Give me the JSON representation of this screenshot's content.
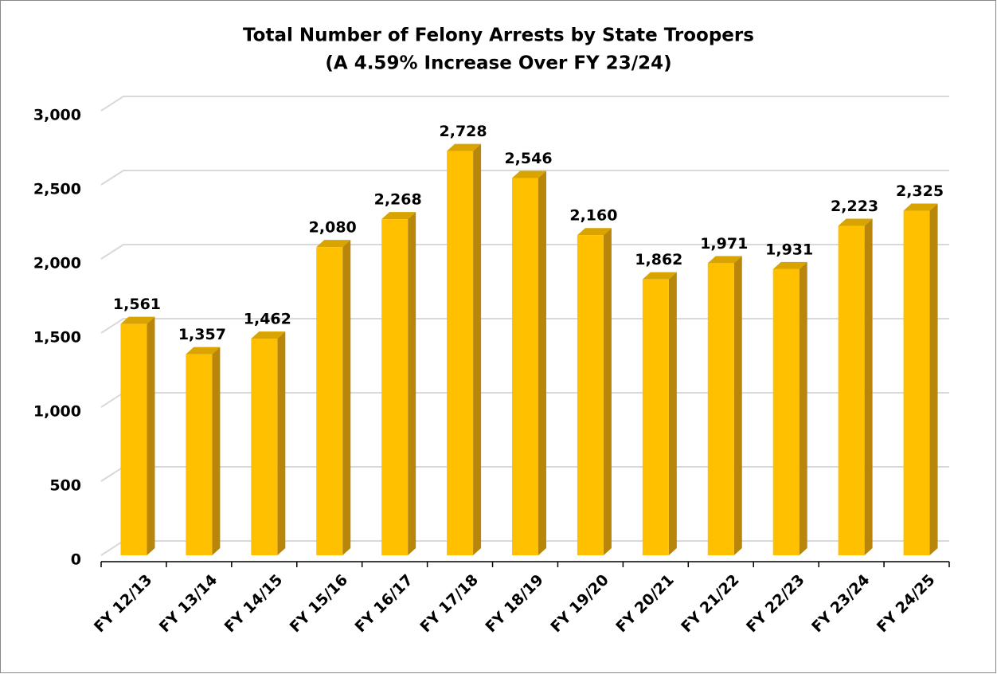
{
  "chart_data": {
    "type": "bar",
    "title": "Total Number of Felony Arrests by State Troopers",
    "subtitle": "(A 4.59% Increase Over FY 23/24)",
    "categories": [
      "FY 12/13",
      "FY 13/14",
      "FY 14/15",
      "FY 15/16",
      "FY 16/17",
      "FY 17/18",
      "FY 18/19",
      "FY 19/20",
      "FY 20/21",
      "FY 21/22",
      "FY 22/23",
      "FY 23/24",
      "FY 24/25"
    ],
    "values": [
      1561,
      1357,
      1462,
      2080,
      2268,
      2728,
      2546,
      2160,
      1862,
      1971,
      1931,
      2223,
      2325
    ],
    "value_labels": [
      "1,561",
      "1,357",
      "1,462",
      "2,080",
      "2,268",
      "2,728",
      "2,546",
      "2,160",
      "1,862",
      "1,971",
      "1,931",
      "2,223",
      "2,325"
    ],
    "color": "#FFC000",
    "ylim": [
      0,
      3000
    ],
    "yticks": [
      0,
      500,
      {
        "value": 1000,
        "label": "1,000"
      },
      {
        "value": 1500,
        "label": "1,500"
      },
      {
        "value": 2000,
        "label": "2,000"
      },
      {
        "value": 2500,
        "label": "2,500"
      },
      {
        "value": 3000,
        "label": "3,000"
      }
    ],
    "grid": true
  }
}
